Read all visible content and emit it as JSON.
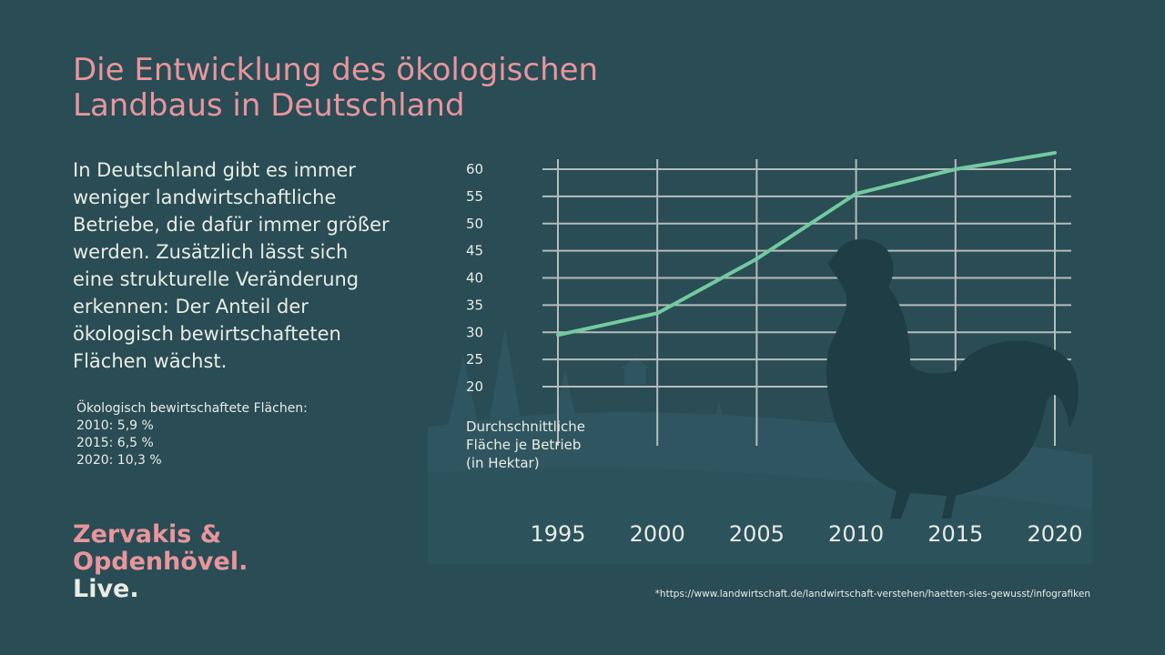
{
  "title": {
    "line1": "Die Entwicklung des ökologischen",
    "line2": "Landbaus in Deutschland"
  },
  "description": {
    "lines": [
      "In Deutschland gibt es immer",
      "weniger landwirtschaftliche",
      "Betriebe, die dafür immer größer",
      "werden. Zusätzlich lässt sich",
      "eine strukturelle Veränderung",
      "erkennen: Der Anteil der",
      "ökologisch bewirtschafteten",
      "Flächen wächst."
    ]
  },
  "stats": {
    "heading": "Ökologisch bewirtschaftete Flächen:",
    "items": [
      "2010: 5,9 %",
      "2015: 6,5 %",
      "2020: 10,3 %"
    ]
  },
  "brand": {
    "line1": "Zervakis &",
    "line2": "Opdenhövel.",
    "line3": "Live."
  },
  "source": "*https://www.landwirtschaft.de/landwirtschaft-verstehen/haetten-sies-gewusst/infografiken",
  "colors": {
    "background": "#294c55",
    "title": "#e8959c",
    "text": "#e9ece3",
    "line": "#74c9a0",
    "grid": "#b5bcb8",
    "silhouette": "#1f3d45"
  },
  "chart_data": {
    "type": "line",
    "x": [
      1995,
      2000,
      2005,
      2010,
      2015,
      2020
    ],
    "series": [
      {
        "values": [
          29.5,
          33.5,
          43.5,
          55.5,
          60,
          63
        ]
      }
    ],
    "xticks": [
      "1995",
      "2000",
      "2005",
      "2010",
      "2015",
      "2020"
    ],
    "yticks": [
      "20",
      "25",
      "30",
      "35",
      "40",
      "45",
      "50",
      "55",
      "60"
    ],
    "ylabel_lines": [
      "Durchschnittliche",
      "Fläche je Betrieb",
      "(in Hektar)"
    ],
    "ylim": [
      20,
      60
    ],
    "grid": true
  }
}
